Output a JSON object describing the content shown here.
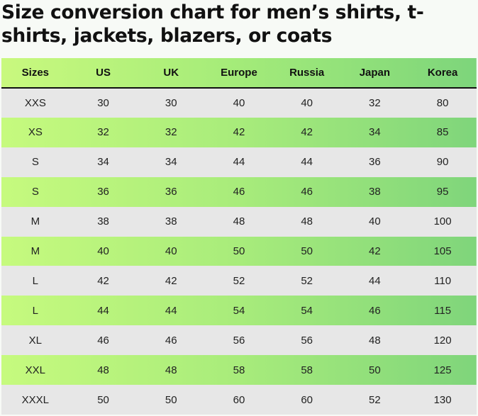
{
  "title": "Size conversion chart for men’s shirts, t-shirts, jackets, blazers, or coats",
  "table": {
    "headers": [
      "Sizes",
      "US",
      "UK",
      "Europe",
      "Russia",
      "Japan",
      "Korea"
    ],
    "rows": [
      [
        "XXS",
        "30",
        "30",
        "40",
        "40",
        "32",
        "80"
      ],
      [
        "XS",
        "32",
        "32",
        "42",
        "42",
        "34",
        "85"
      ],
      [
        "S",
        "34",
        "34",
        "44",
        "44",
        "36",
        "90"
      ],
      [
        "S",
        "36",
        "36",
        "46",
        "46",
        "38",
        "95"
      ],
      [
        "M",
        "38",
        "38",
        "48",
        "48",
        "40",
        "100"
      ],
      [
        "M",
        "40",
        "40",
        "50",
        "50",
        "42",
        "105"
      ],
      [
        "L",
        "42",
        "42",
        "52",
        "52",
        "44",
        "110"
      ],
      [
        "L",
        "44",
        "44",
        "54",
        "54",
        "46",
        "115"
      ],
      [
        "XL",
        "46",
        "46",
        "56",
        "56",
        "48",
        "120"
      ],
      [
        "XXL",
        "48",
        "48",
        "58",
        "58",
        "50",
        "125"
      ],
      [
        "XXXL",
        "50",
        "50",
        "60",
        "60",
        "52",
        "130"
      ]
    ]
  },
  "colors": {
    "header_green_start": "#c9f97e",
    "header_green_end": "#7dd57b",
    "row_grey": "#e7e7e7",
    "row_green_start": "#c6fa7e",
    "row_green_end": "#7fd57b",
    "text": "#111111"
  }
}
